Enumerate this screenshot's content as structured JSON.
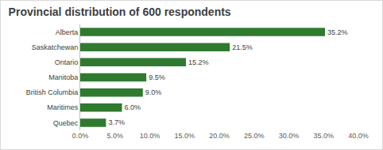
{
  "chart_data": {
    "type": "bar",
    "orientation": "horizontal",
    "title": "Provincial distribution of 600 respondents",
    "categories": [
      "Alberta",
      "Saskatchewan",
      "Ontario",
      "Manitoba",
      "British Columbia",
      "Maritimes",
      "Quebec"
    ],
    "values": [
      35.2,
      21.5,
      15.2,
      9.5,
      9.0,
      6.0,
      3.7
    ],
    "value_labels": [
      "35.2%",
      "21.5%",
      "15.2%",
      "9.5%",
      "9.0%",
      "6.0%",
      "3.7%"
    ],
    "data_labels": true,
    "color": "#2f7a2f",
    "xlim": [
      0,
      40
    ],
    "xticks": [
      {
        "value": 0,
        "label": "0.0%"
      },
      {
        "value": 5,
        "label": "5.0%"
      },
      {
        "value": 10,
        "label": "10.0%"
      },
      {
        "value": 15,
        "label": "15.0%"
      },
      {
        "value": 20,
        "label": "20.0%"
      },
      {
        "value": 25,
        "label": "25.0%"
      },
      {
        "value": 30,
        "label": "30.0%"
      },
      {
        "value": 35,
        "label": "35.0%"
      },
      {
        "value": 40,
        "label": "40.0%"
      }
    ],
    "grid": false
  }
}
